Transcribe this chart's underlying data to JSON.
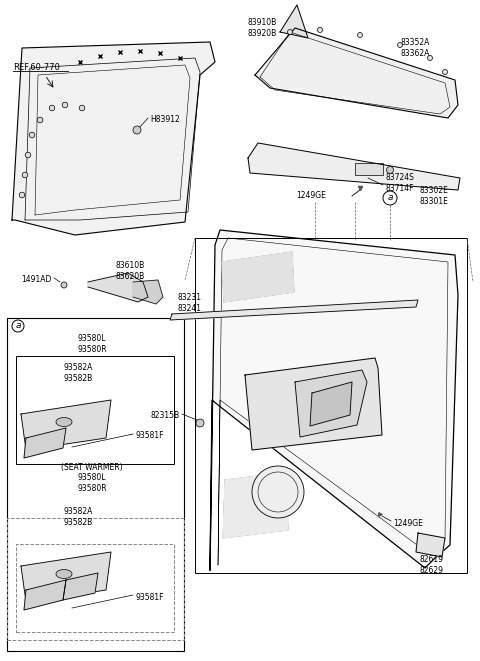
{
  "bg_color": "#ffffff",
  "line_color": "#000000",
  "text_color": "#000000",
  "fs": 5.5,
  "labels": {
    "ref": "REF.60-770",
    "H83912": "H83912",
    "83910B": "83910B\n83920B",
    "83352A": "83352A\n83362A",
    "83724S": "83724S\n83714F",
    "1249GE_top": "1249GE",
    "83302E": "83302E\n83301E",
    "1491AD": "1491AD",
    "83610B": "83610B\n83620B",
    "83231": "83231\n83241",
    "circle_a": "a",
    "93580LR_1": "93580L\n93580R",
    "93582A_1": "93582A\n93582B",
    "93581F_1": "93581F",
    "seat_warmer": "(SEAT WARMER)\n93580L\n93580R",
    "93582A_2": "93582A\n93582B",
    "93581F_2": "93581F",
    "82315B": "82315B",
    "1249GE_bot": "1249GE",
    "82619": "82619\n82629"
  }
}
